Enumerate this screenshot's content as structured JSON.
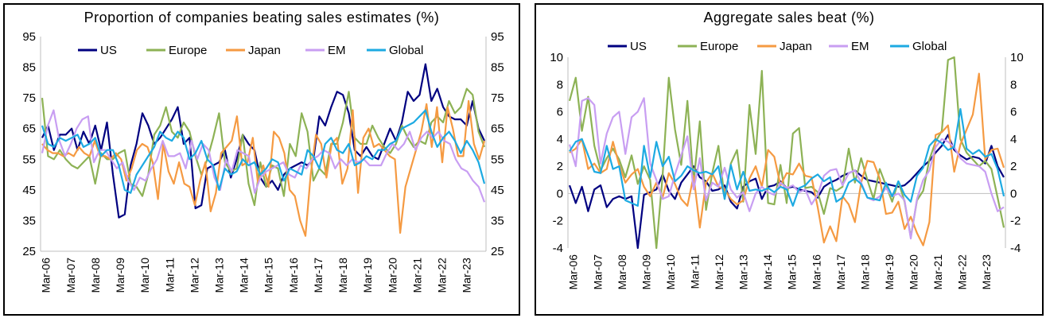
{
  "colors": {
    "US": "#000080",
    "Europe": "#8DB255",
    "Japan": "#F59A42",
    "EM": "#C89EF2",
    "Global": "#1DAAE2"
  },
  "chart_data": [
    {
      "type": "line",
      "title": "Proportion of companies beating sales estimates (%)",
      "xlabel": "",
      "ylabel": "",
      "ylim": [
        25,
        95
      ],
      "yticks": [
        "25",
        "35",
        "45",
        "55",
        "65",
        "75",
        "85",
        "95"
      ],
      "x_tick_labels": [
        "Mar-06",
        "Mar-07",
        "Mar-08",
        "Mar-09",
        "Mar-10",
        "Mar-11",
        "Mar-12",
        "Mar-13",
        "Mar-14",
        "Mar-15",
        "Mar-16",
        "Mar-17",
        "Mar-18",
        "Mar-19",
        "Mar-20",
        "Mar-21",
        "Mar-22",
        "Mar-23"
      ],
      "legend": "top",
      "grid": false,
      "dual_y_axis": true,
      "series": [
        {
          "name": "US",
          "values": [
            62,
            66,
            58,
            63,
            63,
            65,
            58,
            64,
            60,
            66,
            58,
            67,
            50,
            36,
            37,
            53,
            60,
            70,
            66,
            60,
            62,
            65,
            68,
            72,
            60,
            62,
            39,
            40,
            52,
            53,
            54,
            58,
            49,
            55,
            63,
            60,
            58,
            49,
            46,
            48,
            45,
            50,
            52,
            53,
            54,
            53,
            55,
            69,
            66,
            72,
            77,
            76,
            70,
            58,
            56,
            59,
            56,
            55,
            60,
            65,
            61,
            67,
            77,
            74,
            76,
            86,
            74,
            78,
            72,
            69,
            68,
            68,
            66,
            74,
            65,
            61
          ]
        },
        {
          "name": "Europe",
          "values": [
            75,
            56,
            55,
            58,
            55,
            53,
            52,
            54,
            56,
            47,
            57,
            55,
            55,
            57,
            58,
            47,
            46,
            43,
            50,
            63,
            66,
            72,
            64,
            62,
            67,
            64,
            56,
            50,
            55,
            62,
            70,
            54,
            51,
            52,
            63,
            47,
            40,
            54,
            46,
            53,
            52,
            43,
            60,
            56,
            70,
            64,
            48,
            52,
            50,
            60,
            60,
            67,
            77,
            62,
            60,
            60,
            66,
            62,
            59,
            57,
            60,
            66,
            62,
            59,
            61,
            60,
            67,
            69,
            67,
            74,
            70,
            72,
            78,
            76,
            64,
            59
          ]
        },
        {
          "name": "Japan",
          "values": [
            60,
            58,
            57,
            57,
            56,
            57,
            56,
            59,
            57,
            56,
            61,
            56,
            56,
            55,
            57,
            55,
            48,
            52,
            58,
            60,
            59,
            54,
            42,
            60,
            51,
            47,
            54,
            47,
            46,
            40,
            48,
            54,
            38,
            44,
            57,
            59,
            61,
            69,
            53,
            54,
            62,
            47,
            53,
            46,
            64,
            62,
            57,
            45,
            43,
            35,
            30,
            50,
            63,
            60,
            49,
            60,
            62,
            47,
            52,
            71,
            44,
            62,
            65,
            59,
            60,
            58,
            56,
            55,
            31,
            46,
            52,
            58,
            64,
            73,
            59,
            72,
            54,
            72,
            65,
            56,
            56,
            74,
            60,
            55,
            61
          ]
        },
        {
          "name": "EM",
          "values": [
            57,
            66,
            71,
            61,
            56,
            60,
            65,
            68,
            69,
            54,
            58,
            58,
            55,
            52,
            54,
            48,
            45,
            49,
            48,
            52,
            55,
            61,
            56,
            56,
            57,
            52,
            61,
            55,
            60,
            58,
            49,
            45,
            55,
            51,
            58,
            57,
            56,
            44,
            49,
            51,
            52,
            53,
            54,
            50,
            49,
            53,
            52,
            55,
            56,
            58,
            57,
            52,
            55,
            53,
            55,
            54,
            55,
            53,
            53,
            53,
            57,
            60,
            58,
            60,
            64,
            58,
            62,
            64,
            62,
            64,
            61,
            60,
            55,
            52,
            51,
            48,
            46,
            41
          ]
        },
        {
          "name": "Global",
          "values": [
            66,
            60,
            59,
            62,
            61,
            62,
            63,
            59,
            60,
            62,
            56,
            58,
            58,
            53,
            45,
            44,
            50,
            53,
            56,
            59,
            64,
            62,
            61,
            64,
            62,
            55,
            57,
            61,
            55,
            53,
            45,
            52,
            50,
            51,
            55,
            53,
            54,
            50,
            52,
            55,
            54,
            48,
            52,
            51,
            50,
            58,
            56,
            52,
            60,
            62,
            58,
            57,
            60,
            53,
            54,
            56,
            55,
            58,
            58,
            60,
            61,
            65,
            66,
            67,
            69,
            71,
            64,
            59,
            62,
            64,
            61,
            57,
            61,
            58,
            54,
            47
          ]
        }
      ]
    },
    {
      "type": "line",
      "title": "Aggregate sales beat (%)",
      "xlabel": "",
      "ylabel": "",
      "ylim": [
        -4,
        10
      ],
      "yticks": [
        "-4",
        "-2",
        "0",
        "2",
        "4",
        "6",
        "8",
        "10"
      ],
      "x_tick_labels": [
        "Mar-06",
        "Mar-07",
        "Mar-08",
        "Mar-09",
        "Mar-10",
        "Mar-11",
        "Mar-12",
        "Mar-13",
        "Mar-14",
        "Mar-15",
        "Mar-16",
        "Mar-17",
        "Mar-18",
        "Mar-19",
        "Mar-20",
        "Mar-21",
        "Mar-22",
        "Mar-23"
      ],
      "legend": "top",
      "grid": false,
      "dual_y_axis": true,
      "series": [
        {
          "name": "US",
          "values": [
            0.6,
            -0.7,
            0.5,
            -1.3,
            0.3,
            0.6,
            -1.0,
            -0.4,
            -0.2,
            -0.4,
            -0.2,
            -4.0,
            -0.1,
            0.1,
            0.3,
            1.4,
            0.2,
            -0.4,
            0.8,
            1.4,
            2.0,
            1.2,
            0.9,
            0.2,
            0.3,
            0.6,
            -0.6,
            -1.1,
            0.5,
            0.9,
            1.1,
            -0.4,
            0.5,
            0.6,
            0.9,
            0.4,
            0.5,
            0.3,
            0.2,
            0.1,
            -0.3,
            0.5,
            0.8,
            1.0,
            1.3,
            1.5,
            1.7,
            1.3,
            1.0,
            0.9,
            0.8,
            0.7,
            0.6,
            0.5,
            0.6,
            1.0,
            1.5,
            2.0,
            2.4,
            3.0,
            3.5,
            4.3,
            3.2,
            2.8,
            2.5,
            2.7,
            2.6,
            2.2,
            3.5,
            2.0,
            1.2
          ]
        },
        {
          "name": "Europe",
          "values": [
            6.8,
            8.5,
            4.6,
            7.1,
            3.5,
            1.7,
            2.6,
            3.3,
            2.5,
            1.2,
            2.8,
            0.7,
            2.0,
            1.0,
            -4.0,
            1.3,
            8.5,
            4.7,
            2.1,
            6.8,
            0.8,
            5.3,
            -1.2,
            1.5,
            3.5,
            -0.4,
            2.2,
            3.2,
            -0.6,
            6.5,
            2.9,
            9.0,
            -0.7,
            -0.8,
            2.1,
            -0.7,
            4.4,
            4.8,
            0.4,
            0.5,
            0.1,
            -1.5,
            0.4,
            0.2,
            0.5,
            3.3,
            0.8,
            2.6,
            1.0,
            -0.4,
            1.8,
            0.6,
            -0.6,
            0.9,
            -0.6,
            -3.2,
            -0.5,
            0.2,
            2.5,
            3.8,
            4.6,
            9.8,
            10.2,
            4.0,
            3.0,
            2.5,
            2.0,
            2.4,
            1.8,
            -0.3,
            -2.5
          ]
        },
        {
          "name": "Japan",
          "values": [
            3.0,
            3.3,
            4.0,
            1.8,
            2.2,
            1.5,
            1.8,
            3.8,
            2.1,
            0.8,
            1.4,
            1.8,
            0.5,
            -0.2,
            0.8,
            -0.3,
            1.5,
            0.7,
            -0.4,
            -0.9,
            1.3,
            -2.5,
            0.8,
            1.5,
            0.5,
            0.3,
            -0.4,
            -0.8,
            -0.5,
            1.1,
            2.0,
            0.5,
            3.2,
            2.7,
            0.6,
            1.5,
            1.4,
            2.2,
            1.3,
            1.2,
            -1.0,
            -3.6,
            -2.4,
            -3.5,
            -0.2,
            -0.8,
            -2.1,
            0.8,
            2.4,
            2.3,
            1.1,
            -1.5,
            -1.4,
            -0.6,
            -2.6,
            -1.7,
            -2.9,
            -3.8,
            -2.1,
            4.3,
            4.5,
            5.0,
            1.6,
            3.6,
            4.7,
            5.8,
            8.8,
            2.5,
            3.2,
            3.3,
            1.9
          ]
        },
        {
          "name": "EM",
          "values": [
            3.6,
            2.0,
            6.8,
            7.0,
            6.5,
            2.2,
            4.4,
            5.6,
            6.0,
            2.9,
            5.6,
            6.0,
            7.0,
            2.2,
            1.0,
            -0.4,
            -0.2,
            1.4,
            2.8,
            4.2,
            0.3,
            2.6,
            -0.5,
            0.8,
            0.5,
            1.9,
            0.3,
            -0.3,
            0.1,
            -1.3,
            0.0,
            0.5,
            0.1,
            -0.1,
            0.8,
            0.4,
            0.6,
            0.1,
            0.3,
            -0.8,
            -0.1,
            1.3,
            1.7,
            1.8,
            0.6,
            1.5,
            1.7,
            0.8,
            -0.3,
            -0.5,
            -0.2,
            0.4,
            -0.2,
            0.0,
            -0.5,
            -3.3,
            -0.4,
            1.0,
            1.7,
            3.4,
            4.0,
            3.8,
            3.4,
            2.6,
            2.2,
            2.1,
            2.0,
            1.6,
            0.0,
            -1.3,
            -1.0
          ]
        },
        {
          "name": "Global",
          "values": [
            3.1,
            3.8,
            4.0,
            2.8,
            1.6,
            1.5,
            3.5,
            1.8,
            2.0,
            -0.5,
            -0.7,
            -0.9,
            3.5,
            1.2,
            3.8,
            2.0,
            2.7,
            0.9,
            1.3,
            2.0,
            1.7,
            1.5,
            1.6,
            1.4,
            2.0,
            -0.4,
            2.1,
            0.3,
            1.6,
            0.2,
            0.3,
            0.2,
            0.4,
            0.1,
            0.5,
            0.3,
            -0.9,
            0.4,
            0.6,
            1.1,
            1.4,
            0.9,
            1.2,
            -0.6,
            -0.3,
            0.8,
            1.1,
            0.7,
            -0.3,
            -0.4,
            -0.5,
            0.8,
            -0.2,
            0.9,
            -0.1,
            -0.6,
            1.3,
            1.9,
            3.5,
            4.0,
            3.7,
            3.2,
            3.4,
            6.2,
            3.3,
            2.9,
            3.2,
            2.7,
            2.9,
            1.8,
            -0.2
          ]
        }
      ]
    }
  ]
}
